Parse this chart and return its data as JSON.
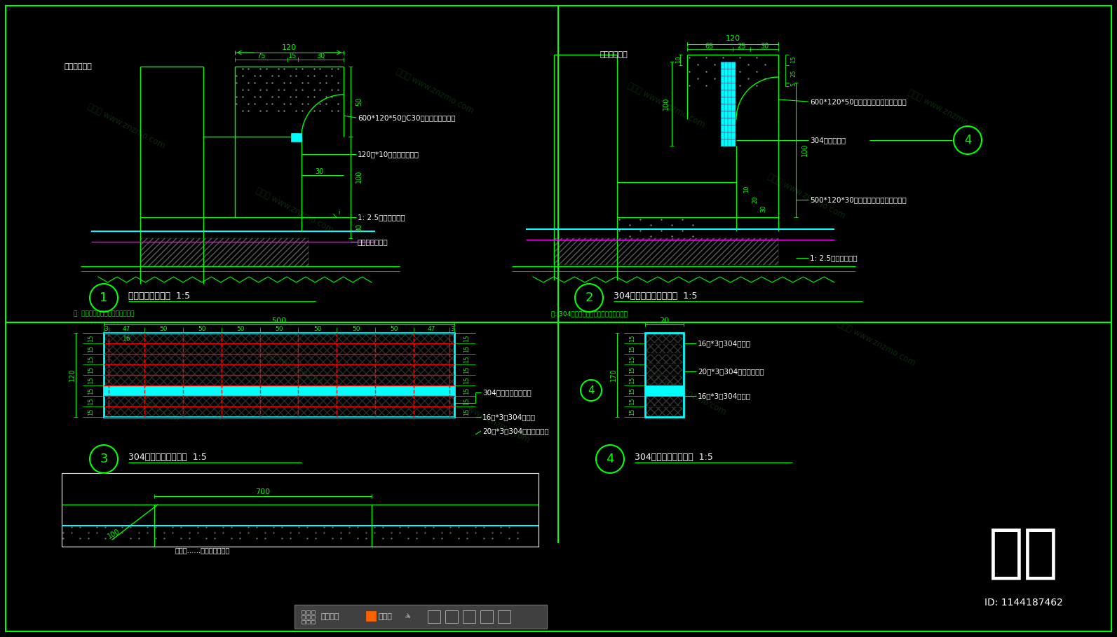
{
  "bg_color": "#000000",
  "gc": "#00FF00",
  "cc": "#00FFFF",
  "wc": "#FFFFFF",
  "rc": "#FF0000",
  "mc": "#FF00FF",
  "grayc": "#808080",
  "section1_title": "铸铁篦子固定大样  1:5",
  "section1_note": "注: 铸铁篦子规格详见建筑施工图中",
  "section2_title": "304不锈钢篦子固定大样  1:5",
  "section2_note": "注: 304不锈钢篦子规格详见建筑施工图中",
  "section3_title": "304不锈钢篦子大样图  1:5",
  "section4_title": "304不锈钢篦子剖面图  1:5",
  "brand_text": "知末",
  "id_text": "ID: 1144187462",
  "toolbar_text": "标注分类",
  "toolbar_unclassified": "未分类"
}
